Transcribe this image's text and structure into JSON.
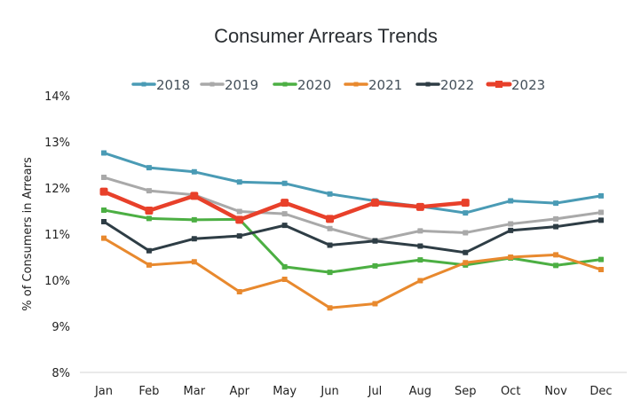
{
  "chart_data": {
    "type": "line",
    "title": "Consumer Arrears Trends",
    "xlabel": "",
    "ylabel": "% of Consumers in Arrears",
    "categories": [
      "Jan",
      "Feb",
      "Mar",
      "Apr",
      "May",
      "Jun",
      "Jul",
      "Aug",
      "Sep",
      "Oct",
      "Nov",
      "Dec"
    ],
    "ylim": [
      8,
      14
    ],
    "yticks": [
      8,
      9,
      10,
      11,
      12,
      13,
      14
    ],
    "ytick_labels": [
      "8%",
      "9%",
      "10%",
      "11%",
      "12%",
      "13%",
      "14%"
    ],
    "grid": false,
    "legend_position": "top-center",
    "series": [
      {
        "name": "2018",
        "color": "#4a9bb5",
        "emphasis": false,
        "values": [
          12.76,
          12.44,
          12.35,
          12.13,
          12.1,
          11.87,
          11.72,
          11.6,
          11.46,
          11.72,
          11.67,
          11.83
        ]
      },
      {
        "name": "2019",
        "color": "#a9a9a9",
        "emphasis": false,
        "values": [
          12.23,
          11.94,
          11.85,
          11.49,
          11.44,
          11.12,
          10.86,
          11.07,
          11.03,
          11.22,
          11.33,
          11.47
        ]
      },
      {
        "name": "2020",
        "color": "#4caf43",
        "emphasis": false,
        "values": [
          11.52,
          11.34,
          11.31,
          11.32,
          10.29,
          10.17,
          10.31,
          10.44,
          10.33,
          10.48,
          10.32,
          10.45
        ]
      },
      {
        "name": "2021",
        "color": "#e8892e",
        "emphasis": false,
        "values": [
          10.91,
          10.33,
          10.4,
          9.75,
          10.02,
          9.4,
          9.49,
          9.99,
          10.38,
          10.5,
          10.55,
          10.23
        ]
      },
      {
        "name": "2022",
        "color": "#2e3d45",
        "emphasis": false,
        "values": [
          11.27,
          10.64,
          10.9,
          10.96,
          11.19,
          10.76,
          10.85,
          10.74,
          10.6,
          11.08,
          11.16,
          11.3
        ]
      },
      {
        "name": "2023",
        "color": "#e8402a",
        "emphasis": true,
        "values": [
          11.92,
          11.51,
          11.83,
          11.31,
          11.68,
          11.33,
          11.68,
          11.59,
          11.68,
          null,
          null,
          null
        ]
      }
    ]
  }
}
